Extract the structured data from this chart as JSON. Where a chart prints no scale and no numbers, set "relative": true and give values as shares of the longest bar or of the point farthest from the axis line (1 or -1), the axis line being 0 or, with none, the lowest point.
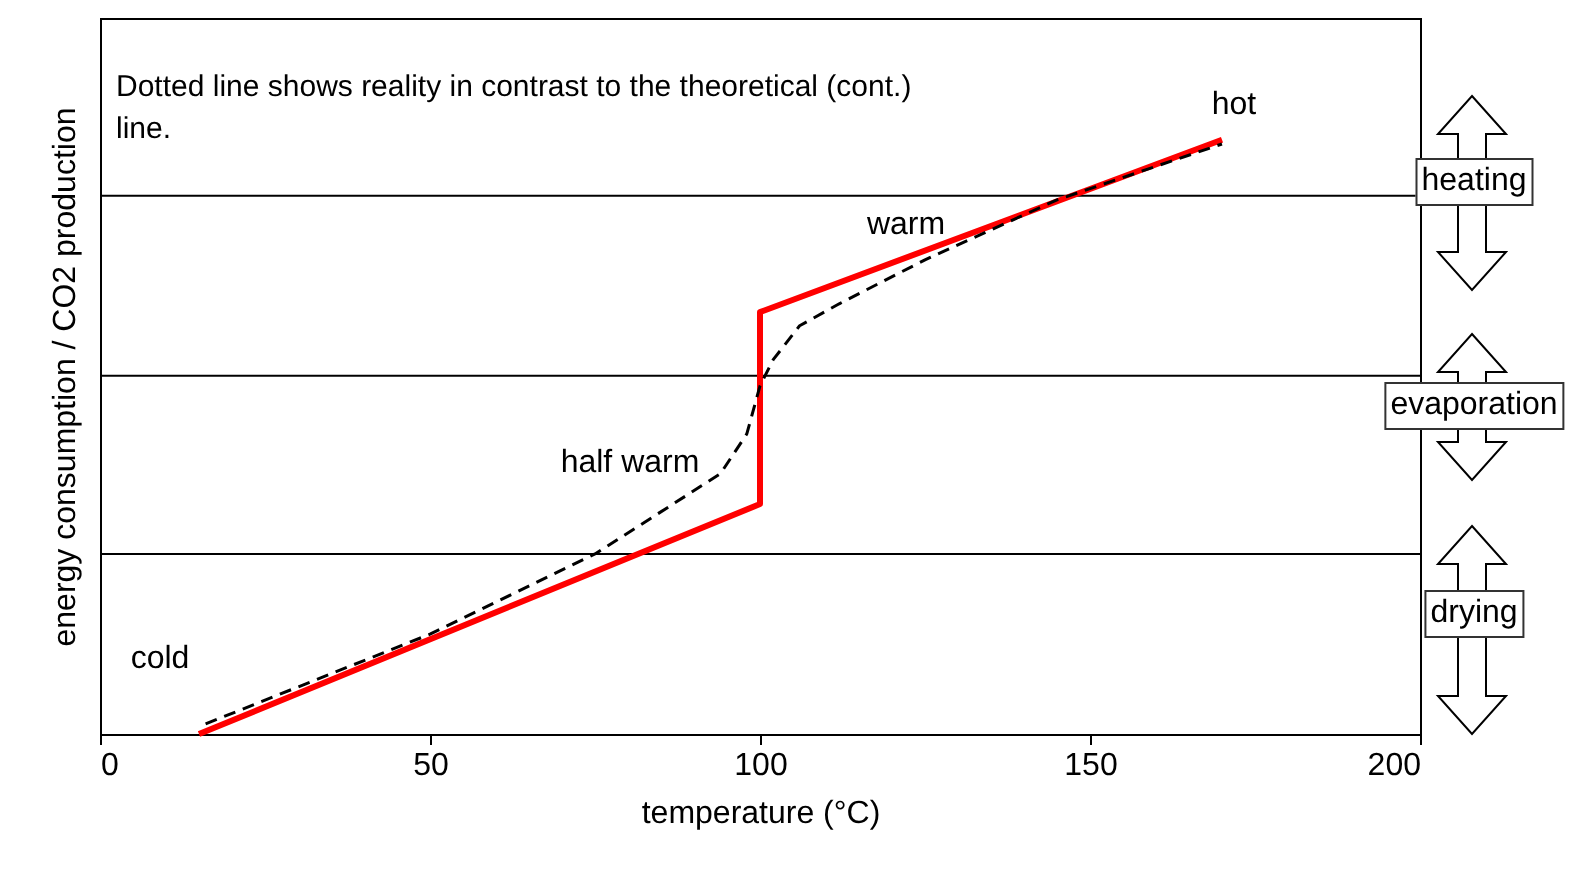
{
  "chart_data": {
    "type": "line",
    "relative": true,
    "xlabel": "temperature (°C)",
    "ylabel": "energy consumption / CO2 production",
    "xlim": [
      0,
      200
    ],
    "xticks": [
      0,
      50,
      100,
      150,
      200
    ],
    "series": [
      {
        "color": "#ff0000",
        "line_style": "solid",
        "x": [
          15,
          100,
          100,
          170
        ],
        "values": [
          0,
          0.387,
          0.71,
          1
        ]
      },
      {
        "color": "#000000",
        "line_style": "dashed",
        "x": [
          16,
          50,
          75,
          94,
          98,
          100,
          102,
          106,
          112,
          125,
          145,
          170
        ],
        "values": [
          0.017,
          0.168,
          0.303,
          0.438,
          0.505,
          0.586,
          0.63,
          0.687,
          0.724,
          0.798,
          0.899,
          0.993
        ]
      }
    ],
    "ref_lines": [
      {
        "axis": "y",
        "value": 0.906
      },
      {
        "axis": "y",
        "value": 0.603
      },
      {
        "axis": "y",
        "value": 0.303
      }
    ],
    "annotations": [
      "Dotted line shows reality in contrast to the theoretical (cont.) line.",
      "cold",
      "half warm",
      "warm",
      "hot",
      "heating",
      "evaporation",
      "drying"
    ]
  }
}
